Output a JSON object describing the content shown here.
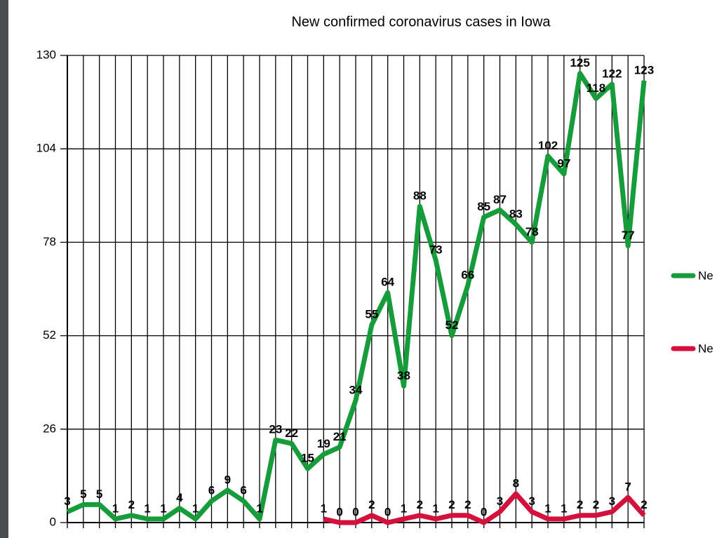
{
  "chart_data": {
    "type": "line",
    "title": "New confirmed coronavirus cases in Iowa",
    "categories": [
      null,
      null,
      null,
      null,
      null,
      null,
      null,
      null,
      null,
      null,
      null,
      null,
      null,
      null,
      null,
      null,
      null,
      null,
      null,
      null,
      null,
      null,
      null,
      null,
      null,
      null,
      null,
      null,
      null,
      null,
      null,
      null,
      null,
      null,
      null,
      null,
      null
    ],
    "series": [
      {
        "name": "Ne",
        "color": "#169c3b",
        "values": [
          3,
          5,
          5,
          1,
          2,
          1,
          1,
          4,
          1,
          6,
          9,
          6,
          1,
          23,
          22,
          15,
          19,
          21,
          34,
          55,
          64,
          38,
          88,
          73,
          52,
          66,
          85,
          87,
          83,
          78,
          102,
          97,
          125,
          118,
          122,
          77,
          123
        ]
      },
      {
        "name": "Ne",
        "color": "#d4113d",
        "values": [
          null,
          null,
          null,
          null,
          null,
          null,
          null,
          null,
          null,
          null,
          null,
          null,
          null,
          null,
          null,
          null,
          1,
          0,
          0,
          2,
          0,
          1,
          2,
          1,
          2,
          2,
          0,
          3,
          8,
          3,
          1,
          1,
          2,
          2,
          3,
          7,
          2
        ]
      }
    ],
    "ylim": [
      0,
      130
    ],
    "yticks": [
      0,
      26,
      52,
      78,
      104,
      130
    ],
    "grid": true,
    "legend": "right"
  }
}
